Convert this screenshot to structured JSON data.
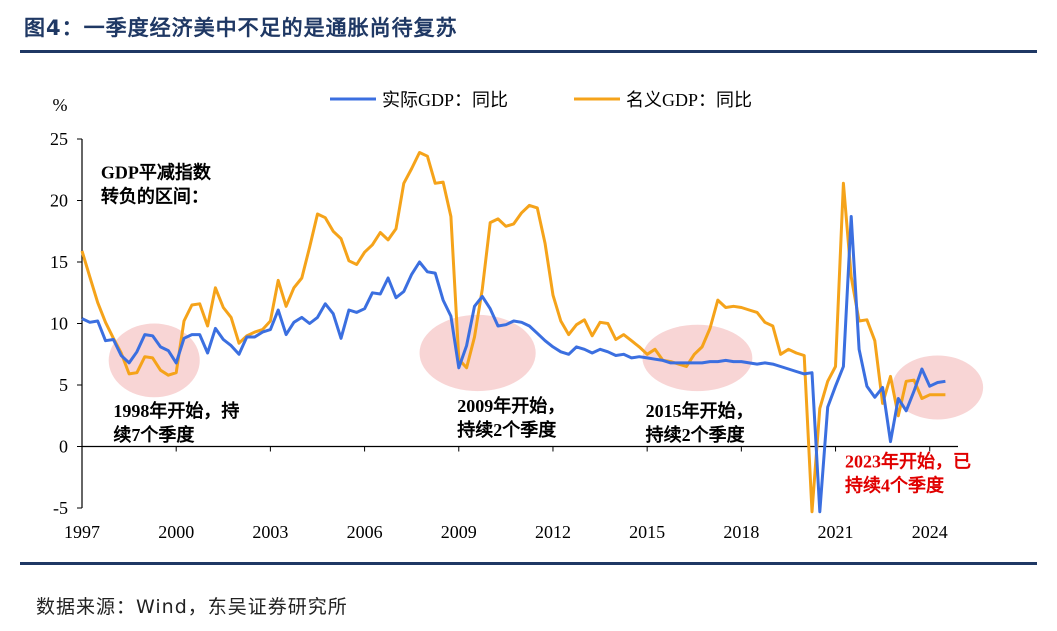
{
  "title": "图4：一季度经济美中不足的是通胀尚待复苏",
  "source": "数据来源：Wind，东吴证券研究所",
  "colors": {
    "real": "#3b6fe0",
    "nominal": "#f5a31a",
    "highlight": "#f2b3b3",
    "red_text": "#e00000",
    "title": "#1f3864"
  },
  "chart_data": {
    "type": "line",
    "ylabel": "%",
    "ylim": [
      -5,
      25
    ],
    "yticks": [
      "-5",
      "0",
      "5",
      "10",
      "15",
      "20",
      "25"
    ],
    "xlim": [
      1997,
      2024.9
    ],
    "xticks": [
      "1997",
      "2000",
      "2003",
      "2006",
      "2009",
      "2012",
      "2015",
      "2018",
      "2021",
      "2024"
    ],
    "grid": false,
    "legend": "top-center",
    "series": [
      {
        "name": "实际GDP：同比",
        "points": [
          [
            1997.0,
            10.4
          ],
          [
            1997.25,
            10.1
          ],
          [
            1997.5,
            10.2
          ],
          [
            1997.75,
            8.6
          ],
          [
            1998.0,
            8.7
          ],
          [
            1998.25,
            7.4
          ],
          [
            1998.5,
            6.8
          ],
          [
            1998.75,
            7.7
          ],
          [
            1999.0,
            9.1
          ],
          [
            1999.25,
            9.0
          ],
          [
            1999.5,
            8.1
          ],
          [
            1999.75,
            7.8
          ],
          [
            2000.0,
            6.8
          ],
          [
            2000.25,
            8.8
          ],
          [
            2000.5,
            9.1
          ],
          [
            2000.75,
            9.1
          ],
          [
            2001.0,
            7.6
          ],
          [
            2001.25,
            9.6
          ],
          [
            2001.5,
            8.7
          ],
          [
            2001.75,
            8.2
          ],
          [
            2002.0,
            7.5
          ],
          [
            2002.25,
            8.9
          ],
          [
            2002.5,
            8.9
          ],
          [
            2002.75,
            9.3
          ],
          [
            2003.0,
            9.5
          ],
          [
            2003.25,
            11.1
          ],
          [
            2003.5,
            9.1
          ],
          [
            2003.75,
            10.1
          ],
          [
            2004.0,
            10.5
          ],
          [
            2004.25,
            10.0
          ],
          [
            2004.5,
            10.5
          ],
          [
            2004.75,
            11.6
          ],
          [
            2005.0,
            10.8
          ],
          [
            2005.25,
            8.8
          ],
          [
            2005.5,
            11.1
          ],
          [
            2005.75,
            10.9
          ],
          [
            2006.0,
            11.2
          ],
          [
            2006.25,
            12.5
          ],
          [
            2006.5,
            12.4
          ],
          [
            2006.75,
            13.7
          ],
          [
            2007.0,
            12.1
          ],
          [
            2007.25,
            12.6
          ],
          [
            2007.5,
            14.0
          ],
          [
            2007.75,
            15.0
          ],
          [
            2008.0,
            14.2
          ],
          [
            2008.25,
            14.1
          ],
          [
            2008.5,
            11.9
          ],
          [
            2008.75,
            10.6
          ],
          [
            2009.0,
            6.4
          ],
          [
            2009.25,
            8.2
          ],
          [
            2009.5,
            11.4
          ],
          [
            2009.75,
            12.2
          ],
          [
            2010.0,
            11.2
          ],
          [
            2010.25,
            9.8
          ],
          [
            2010.5,
            9.9
          ],
          [
            2010.75,
            10.2
          ],
          [
            2011.0,
            10.1
          ],
          [
            2011.25,
            9.8
          ],
          [
            2011.5,
            9.2
          ],
          [
            2011.75,
            8.6
          ],
          [
            2012.0,
            8.1
          ],
          [
            2012.25,
            7.7
          ],
          [
            2012.5,
            7.5
          ],
          [
            2012.75,
            8.1
          ],
          [
            2013.0,
            7.9
          ],
          [
            2013.25,
            7.6
          ],
          [
            2013.5,
            7.9
          ],
          [
            2013.75,
            7.7
          ],
          [
            2014.0,
            7.4
          ],
          [
            2014.25,
            7.5
          ],
          [
            2014.5,
            7.2
          ],
          [
            2014.75,
            7.3
          ],
          [
            2015.0,
            7.2
          ],
          [
            2015.25,
            7.1
          ],
          [
            2015.5,
            7.0
          ],
          [
            2015.75,
            6.8
          ],
          [
            2016.0,
            6.8
          ],
          [
            2016.25,
            6.8
          ],
          [
            2016.5,
            6.8
          ],
          [
            2016.75,
            6.8
          ],
          [
            2017.0,
            6.9
          ],
          [
            2017.25,
            6.9
          ],
          [
            2017.5,
            7.0
          ],
          [
            2017.75,
            6.9
          ],
          [
            2018.0,
            6.9
          ],
          [
            2018.25,
            6.8
          ],
          [
            2018.5,
            6.7
          ],
          [
            2018.75,
            6.8
          ],
          [
            2019.0,
            6.7
          ],
          [
            2019.25,
            6.5
          ],
          [
            2019.5,
            6.3
          ],
          [
            2019.75,
            6.1
          ],
          [
            2020.0,
            5.9
          ],
          [
            2020.25,
            6.0
          ],
          [
            2020.5,
            -5.3
          ],
          [
            2020.75,
            3.2
          ],
          [
            2021.0,
            4.9
          ],
          [
            2021.25,
            6.5
          ],
          [
            2021.5,
            18.7
          ],
          [
            2021.75,
            7.9
          ],
          [
            2022.0,
            4.9
          ],
          [
            2022.25,
            4.0
          ],
          [
            2022.5,
            4.8
          ],
          [
            2022.75,
            0.4
          ],
          [
            2023.0,
            3.9
          ],
          [
            2023.25,
            2.9
          ],
          [
            2023.5,
            4.5
          ],
          [
            2023.75,
            6.3
          ],
          [
            2024.0,
            4.9
          ],
          [
            2024.25,
            5.2
          ],
          [
            2024.5,
            5.3
          ]
        ]
      },
      {
        "name": "名义GDP：同比",
        "points": [
          [
            1997.0,
            15.9
          ],
          [
            1997.25,
            13.8
          ],
          [
            1997.5,
            11.7
          ],
          [
            1997.75,
            10.1
          ],
          [
            1998.0,
            8.8
          ],
          [
            1998.25,
            7.6
          ],
          [
            1998.5,
            5.9
          ],
          [
            1998.75,
            6.0
          ],
          [
            1999.0,
            7.3
          ],
          [
            1999.25,
            7.2
          ],
          [
            1999.5,
            6.2
          ],
          [
            1999.75,
            5.8
          ],
          [
            2000.0,
            6.0
          ],
          [
            2000.25,
            10.2
          ],
          [
            2000.5,
            11.5
          ],
          [
            2000.75,
            11.6
          ],
          [
            2001.0,
            9.8
          ],
          [
            2001.25,
            12.9
          ],
          [
            2001.5,
            11.3
          ],
          [
            2001.75,
            10.5
          ],
          [
            2002.0,
            8.4
          ],
          [
            2002.25,
            9.0
          ],
          [
            2002.5,
            9.3
          ],
          [
            2002.75,
            9.5
          ],
          [
            2003.0,
            10.2
          ],
          [
            2003.25,
            13.5
          ],
          [
            2003.5,
            11.4
          ],
          [
            2003.75,
            12.9
          ],
          [
            2004.0,
            13.7
          ],
          [
            2004.25,
            16.2
          ],
          [
            2004.5,
            18.9
          ],
          [
            2004.75,
            18.6
          ],
          [
            2005.0,
            17.5
          ],
          [
            2005.25,
            16.9
          ],
          [
            2005.5,
            15.1
          ],
          [
            2005.75,
            14.8
          ],
          [
            2006.0,
            15.8
          ],
          [
            2006.25,
            16.4
          ],
          [
            2006.5,
            17.4
          ],
          [
            2006.75,
            16.8
          ],
          [
            2007.0,
            17.7
          ],
          [
            2007.25,
            21.4
          ],
          [
            2007.5,
            22.6
          ],
          [
            2007.75,
            23.9
          ],
          [
            2008.0,
            23.6
          ],
          [
            2008.25,
            21.4
          ],
          [
            2008.5,
            21.5
          ],
          [
            2008.75,
            18.7
          ],
          [
            2009.0,
            7.1
          ],
          [
            2009.25,
            6.4
          ],
          [
            2009.5,
            8.9
          ],
          [
            2009.75,
            12.8
          ],
          [
            2010.0,
            18.2
          ],
          [
            2010.25,
            18.5
          ],
          [
            2010.5,
            17.9
          ],
          [
            2010.75,
            18.1
          ],
          [
            2011.0,
            19.0
          ],
          [
            2011.25,
            19.6
          ],
          [
            2011.5,
            19.4
          ],
          [
            2011.75,
            16.5
          ],
          [
            2012.0,
            12.3
          ],
          [
            2012.25,
            10.2
          ],
          [
            2012.5,
            9.1
          ],
          [
            2012.75,
            9.9
          ],
          [
            2013.0,
            10.3
          ],
          [
            2013.25,
            9.0
          ],
          [
            2013.5,
            10.1
          ],
          [
            2013.75,
            10.0
          ],
          [
            2014.0,
            8.7
          ],
          [
            2014.25,
            9.1
          ],
          [
            2014.5,
            8.6
          ],
          [
            2014.75,
            8.1
          ],
          [
            2015.0,
            7.5
          ],
          [
            2015.25,
            7.9
          ],
          [
            2015.5,
            7.0
          ],
          [
            2015.75,
            6.9
          ],
          [
            2016.0,
            6.7
          ],
          [
            2016.25,
            6.5
          ],
          [
            2016.5,
            7.5
          ],
          [
            2016.75,
            8.1
          ],
          [
            2017.0,
            9.6
          ],
          [
            2017.25,
            11.9
          ],
          [
            2017.5,
            11.3
          ],
          [
            2017.75,
            11.4
          ],
          [
            2018.0,
            11.3
          ],
          [
            2018.25,
            11.1
          ],
          [
            2018.5,
            10.9
          ],
          [
            2018.75,
            10.1
          ],
          [
            2019.0,
            9.8
          ],
          [
            2019.25,
            7.5
          ],
          [
            2019.5,
            7.9
          ],
          [
            2019.75,
            7.6
          ],
          [
            2020.0,
            7.4
          ],
          [
            2020.25,
            -5.3
          ],
          [
            2020.5,
            3.1
          ],
          [
            2020.75,
            5.3
          ],
          [
            2021.0,
            6.5
          ],
          [
            2021.25,
            21.4
          ],
          [
            2021.5,
            13.8
          ],
          [
            2021.75,
            10.2
          ],
          [
            2022.0,
            10.3
          ],
          [
            2022.25,
            8.6
          ],
          [
            2022.5,
            3.5
          ],
          [
            2022.75,
            5.7
          ],
          [
            2023.0,
            2.5
          ],
          [
            2023.25,
            5.3
          ],
          [
            2023.5,
            5.4
          ],
          [
            2023.75,
            3.9
          ],
          [
            2024.0,
            4.2
          ],
          [
            2024.25,
            4.2
          ],
          [
            2024.5,
            4.2
          ]
        ]
      }
    ],
    "highlights": [
      {
        "cx": 1999.3,
        "cy": 7.0,
        "rx": 1.45,
        "ry": 3.0
      },
      {
        "cx": 2009.6,
        "cy": 7.6,
        "rx": 1.85,
        "ry": 3.1
      },
      {
        "cx": 2016.6,
        "cy": 7.2,
        "rx": 1.75,
        "ry": 2.7
      },
      {
        "cx": 2024.25,
        "cy": 4.8,
        "rx": 1.45,
        "ry": 2.6
      }
    ],
    "annotations": [
      {
        "lines": [
          "GDP平减指数",
          "转负的区间："
        ],
        "x": 1997.6,
        "y": 21.8,
        "color": "#000000",
        "anchor": "start"
      },
      {
        "lines": [
          "1998年开始，持",
          "续7个季度"
        ],
        "x": 1998.0,
        "y": 2.4,
        "color": "#000000",
        "anchor": "start"
      },
      {
        "lines": [
          "2009年开始，",
          "持续2个季度"
        ],
        "x": 2008.95,
        "y": 2.8,
        "color": "#000000",
        "anchor": "start"
      },
      {
        "lines": [
          "2015年开始，",
          "持续2个季度"
        ],
        "x": 2014.95,
        "y": 2.4,
        "color": "#000000",
        "anchor": "start"
      },
      {
        "lines": [
          "2023年开始，已",
          "持续4个季度"
        ],
        "x": 2021.3,
        "y": -1.7,
        "color": "#e00000",
        "anchor": "start"
      }
    ]
  }
}
